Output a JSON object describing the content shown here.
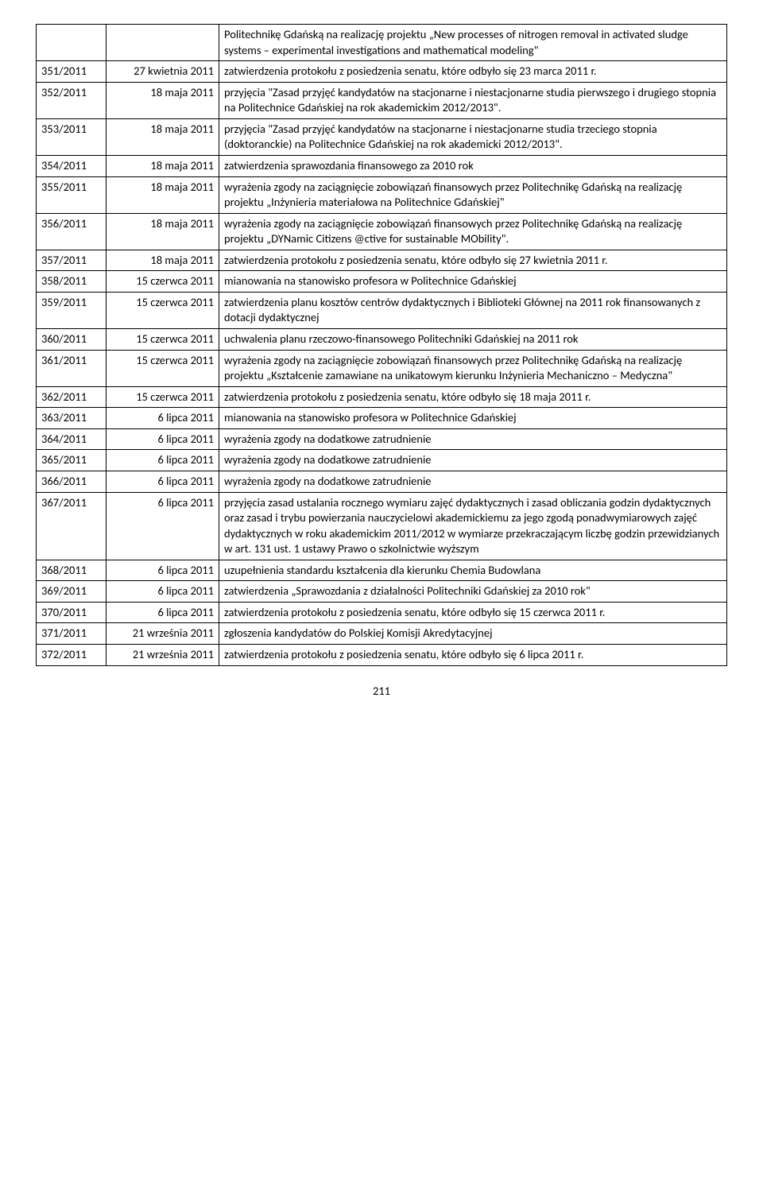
{
  "page_number": "211",
  "first_row_desc": "Politechnikę Gdańską na realizację projektu „New processes of nitrogen removal in activated sludge systems – experimental investigations and mathematical modeling\"",
  "rows": [
    {
      "id": "351/2011",
      "date": "27 kwietnia 2011",
      "desc": "zatwierdzenia protokołu z posiedzenia senatu, które odbyło się 23 marca 2011 r."
    },
    {
      "id": "352/2011",
      "date": "18 maja 2011",
      "desc": "przyjęcia \"Zasad przyjęć kandydatów na stacjonarne i niestacjonarne studia pierwszego i drugiego stopnia na Politechnice Gdańskiej na rok akademickim 2012/2013\"."
    },
    {
      "id": "353/2011",
      "date": "18 maja 2011",
      "desc": "przyjęcia \"Zasad przyjęć kandydatów na stacjonarne i niestacjonarne studia trzeciego stopnia (doktoranckie) na Politechnice Gdańskiej na rok akademicki 2012/2013\"."
    },
    {
      "id": "354/2011",
      "date": "18 maja 2011",
      "desc": "zatwierdzenia sprawozdania finansowego za 2010 rok"
    },
    {
      "id": "355/2011",
      "date": "18 maja 2011",
      "desc": "wyrażenia zgody na zaciągnięcie zobowiązań finansowych przez Politechnikę Gdańską na realizację projektu „Inżynieria materiałowa na Politechnice Gdańskiej\""
    },
    {
      "id": "356/2011",
      "date": "18 maja 2011",
      "desc": "wyrażenia zgody na zaciągnięcie zobowiązań finansowych przez Politechnikę Gdańską na realizację projektu „DYNamic Citizens @ctive for sustainable MObility\"."
    },
    {
      "id": "357/2011",
      "date": "18 maja 2011",
      "desc": "zatwierdzenia protokołu z posiedzenia senatu, które odbyło się 27 kwietnia 2011 r."
    },
    {
      "id": "358/2011",
      "date": "15 czerwca 2011",
      "desc": "mianowania na stanowisko profesora w Politechnice Gdańskiej"
    },
    {
      "id": "359/2011",
      "date": "15 czerwca 2011",
      "desc": "zatwierdzenia planu kosztów centrów dydaktycznych i Biblioteki Głównej na 2011 rok finansowanych z dotacji dydaktycznej"
    },
    {
      "id": "360/2011",
      "date": "15 czerwca 2011",
      "desc": "uchwalenia planu rzeczowo-finansowego Politechniki Gdańskiej na 2011 rok"
    },
    {
      "id": "361/2011",
      "date": "15 czerwca 2011",
      "desc": "wyrażenia zgody na zaciągnięcie zobowiązań finansowych przez Politechnikę Gdańską na realizację projektu „Kształcenie zamawiane na unikatowym kierunku Inżynieria Mechaniczno – Medyczna\""
    },
    {
      "id": "362/2011",
      "date": "15 czerwca 2011",
      "desc": "zatwierdzenia protokołu z posiedzenia senatu, które odbyło się 18 maja 2011 r."
    },
    {
      "id": "363/2011",
      "date": "6 lipca 2011",
      "desc": "mianowania na stanowisko profesora w Politechnice Gdańskiej"
    },
    {
      "id": "364/2011",
      "date": "6 lipca 2011",
      "desc": "wyrażenia zgody na dodatkowe zatrudnienie"
    },
    {
      "id": "365/2011",
      "date": "6 lipca 2011",
      "desc": "wyrażenia zgody na dodatkowe zatrudnienie"
    },
    {
      "id": "366/2011",
      "date": "6 lipca 2011",
      "desc": "wyrażenia zgody na dodatkowe zatrudnienie"
    },
    {
      "id": "367/2011",
      "date": "6 lipca 2011",
      "desc": "przyjęcia zasad ustalania rocznego wymiaru zajęć dydaktycznych i zasad obliczania godzin dydaktycznych oraz zasad i trybu powierzania nauczycielowi akademickiemu za jego zgodą ponadwymiarowych zajęć dydaktycznych w roku akademickim 2011/2012 w wymiarze przekraczającym liczbę godzin przewidzianych w art. 131 ust. 1 ustawy Prawo o szkolnictwie wyższym"
    },
    {
      "id": "368/2011",
      "date": "6 lipca 2011",
      "desc": "uzupełnienia standardu kształcenia dla kierunku Chemia Budowlana"
    },
    {
      "id": "369/2011",
      "date": "6 lipca 2011",
      "desc": "zatwierdzenia „Sprawozdania z działalności Politechniki Gdańskiej za 2010 rok\""
    },
    {
      "id": "370/2011",
      "date": "6 lipca 2011",
      "desc": "zatwierdzenia protokołu z posiedzenia senatu, które odbyło się 15 czerwca 2011 r."
    },
    {
      "id": "371/2011",
      "date": "21 września 2011",
      "desc": "zgłoszenia kandydatów do Polskiej Komisji Akredytacyjnej"
    },
    {
      "id": "372/2011",
      "date": "21 września 2011",
      "desc": "zatwierdzenia protokołu z posiedzenia senatu, które odbyło się 6 lipca 2011 r."
    }
  ]
}
